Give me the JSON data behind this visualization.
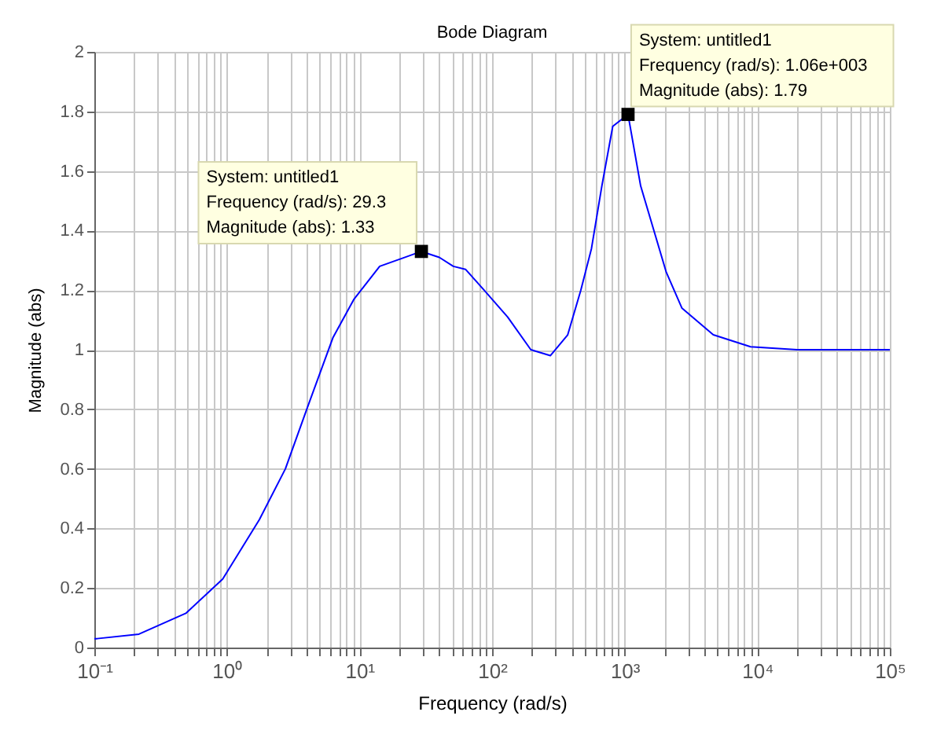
{
  "chart_data": {
    "type": "line",
    "title": "Bode Diagram",
    "xlabel": "Frequency  (rad/s)",
    "ylabel": "Magnitude (abs)",
    "log": "x",
    "grid": true,
    "marker": "none",
    "line_style": "solid",
    "x": [
      0.1,
      0.105,
      0.217,
      0.49,
      0.93,
      1.76,
      2.76,
      4.0,
      6.3,
      9.1,
      14.2,
      29.3,
      40,
      51,
      63,
      87,
      131,
      196,
      275,
      372,
      467,
      562,
      673,
      813,
      1060,
      1320,
      2060,
      2700,
      4660,
      8900,
      20000,
      100000
    ],
    "series": [
      {
        "color": "#0000ff",
        "values": [
          0.03,
          0.03,
          0.045,
          0.115,
          0.23,
          0.43,
          0.6,
          0.8,
          1.04,
          1.17,
          1.28,
          1.33,
          1.31,
          1.28,
          1.27,
          1.2,
          1.11,
          1.0,
          0.98,
          1.05,
          1.2,
          1.34,
          1.55,
          1.75,
          1.79,
          1.55,
          1.26,
          1.14,
          1.05,
          1.01,
          1.0,
          1.0
        ]
      }
    ],
    "xlim": [
      0.1,
      100000
    ],
    "ylim": [
      0,
      2
    ],
    "yticks": [
      0,
      0.2,
      0.4,
      0.6,
      0.8,
      1,
      1.2,
      1.4,
      1.6,
      1.8,
      2
    ],
    "xticks": [
      {
        "value": 0.1,
        "label": "10⁻¹"
      },
      {
        "value": 0.2,
        "label": null
      },
      {
        "value": 0.3,
        "label": null
      },
      {
        "value": 0.4,
        "label": null
      },
      {
        "value": 0.5,
        "label": null
      },
      {
        "value": 0.6,
        "label": null
      },
      {
        "value": 0.7,
        "label": null
      },
      {
        "value": 0.8,
        "label": null
      },
      {
        "value": 0.9,
        "label": null
      },
      {
        "value": 1,
        "label": "10⁰"
      },
      {
        "value": 2,
        "label": null
      },
      {
        "value": 3,
        "label": null
      },
      {
        "value": 4,
        "label": null
      },
      {
        "value": 5,
        "label": null
      },
      {
        "value": 6,
        "label": null
      },
      {
        "value": 7,
        "label": null
      },
      {
        "value": 8,
        "label": null
      },
      {
        "value": 9,
        "label": null
      },
      {
        "value": 10,
        "label": "10¹"
      },
      {
        "value": 20,
        "label": null
      },
      {
        "value": 30,
        "label": null
      },
      {
        "value": 40,
        "label": null
      },
      {
        "value": 50,
        "label": null
      },
      {
        "value": 60,
        "label": null
      },
      {
        "value": 70,
        "label": null
      },
      {
        "value": 80,
        "label": null
      },
      {
        "value": 90,
        "label": null
      },
      {
        "value": 100,
        "label": "10²"
      },
      {
        "value": 200,
        "label": null
      },
      {
        "value": 300,
        "label": null
      },
      {
        "value": 400,
        "label": null
      },
      {
        "value": 500,
        "label": null
      },
      {
        "value": 600,
        "label": null
      },
      {
        "value": 700,
        "label": null
      },
      {
        "value": 800,
        "label": null
      },
      {
        "value": 900,
        "label": null
      },
      {
        "value": 1000,
        "label": "10³"
      },
      {
        "value": 2000,
        "label": null
      },
      {
        "value": 3000,
        "label": null
      },
      {
        "value": 4000,
        "label": null
      },
      {
        "value": 5000,
        "label": null
      },
      {
        "value": 6000,
        "label": null
      },
      {
        "value": 7000,
        "label": null
      },
      {
        "value": 8000,
        "label": null
      },
      {
        "value": 9000,
        "label": null
      },
      {
        "value": 10000,
        "label": "10⁴"
      },
      {
        "value": 20000,
        "label": null
      },
      {
        "value": 30000,
        "label": null
      },
      {
        "value": 40000,
        "label": null
      },
      {
        "value": 50000,
        "label": null
      },
      {
        "value": 60000,
        "label": null
      },
      {
        "value": 70000,
        "label": null
      },
      {
        "value": 80000,
        "label": null
      },
      {
        "value": 90000,
        "label": null
      },
      {
        "value": 100000,
        "label": "10⁵"
      }
    ],
    "annotations": [
      {
        "text": "System: untitled1\nFrequency (rad/s): 29.3\nMagnitude (abs): 1.33",
        "x": 29.3,
        "y": 1.33
      },
      {
        "text": "System: untitled1\nFrequency (rad/s): 1.06e+003\nMagnitude (abs): 1.79",
        "x": 1060,
        "y": 1.79
      }
    ]
  }
}
